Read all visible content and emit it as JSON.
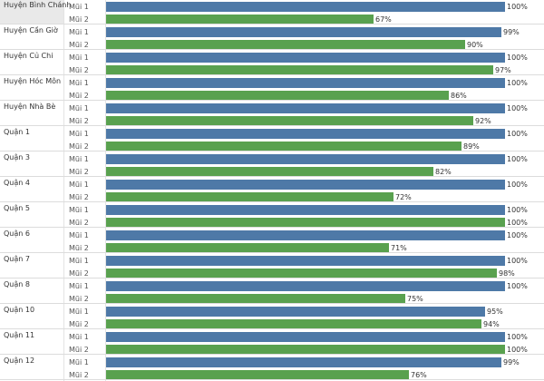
{
  "chart_data": {
    "type": "bar",
    "orientation": "horizontal",
    "value_format": "percent",
    "xlim": [
      0,
      100
    ],
    "series_colors": {
      "Mũi 1": "#4e79a7",
      "Mũi 2": "#59a14f"
    },
    "series_names": [
      "Mũi 1",
      "Mũi 2"
    ],
    "categories": [
      "Huyện Bình Chánh",
      "Huyện Cần Giờ",
      "Huyện Củ Chi",
      "Huyện Hóc Môn",
      "Huyện Nhà Bè",
      "Quận 1",
      "Quận 3",
      "Quận 4",
      "Quận 5",
      "Quận 6",
      "Quận 7",
      "Quận 8",
      "Quận 10",
      "Quận 11",
      "Quận 12"
    ],
    "series": [
      {
        "name": "Mũi 1",
        "values": [
          100,
          99,
          100,
          100,
          100,
          100,
          100,
          100,
          100,
          100,
          100,
          100,
          95,
          100,
          99
        ]
      },
      {
        "name": "Mũi 2",
        "values": [
          67,
          90,
          97,
          86,
          92,
          89,
          82,
          72,
          100,
          71,
          98,
          75,
          94,
          100,
          76
        ]
      }
    ],
    "value_labels": [
      [
        "100%",
        "67%"
      ],
      [
        "99%",
        "90%"
      ],
      [
        "100%",
        "97%"
      ],
      [
        "100%",
        "86%"
      ],
      [
        "100%",
        "92%"
      ],
      [
        "100%",
        "89%"
      ],
      [
        "100%",
        "82%"
      ],
      [
        "100%",
        "72%"
      ],
      [
        "100%",
        "100%"
      ],
      [
        "100%",
        "71%"
      ],
      [
        "100%",
        "98%"
      ],
      [
        "100%",
        "75%"
      ],
      [
        "95%",
        "94%"
      ],
      [
        "100%",
        "100%"
      ],
      [
        "99%",
        "76%"
      ]
    ],
    "title": "",
    "xlabel": "",
    "ylabel": ""
  }
}
